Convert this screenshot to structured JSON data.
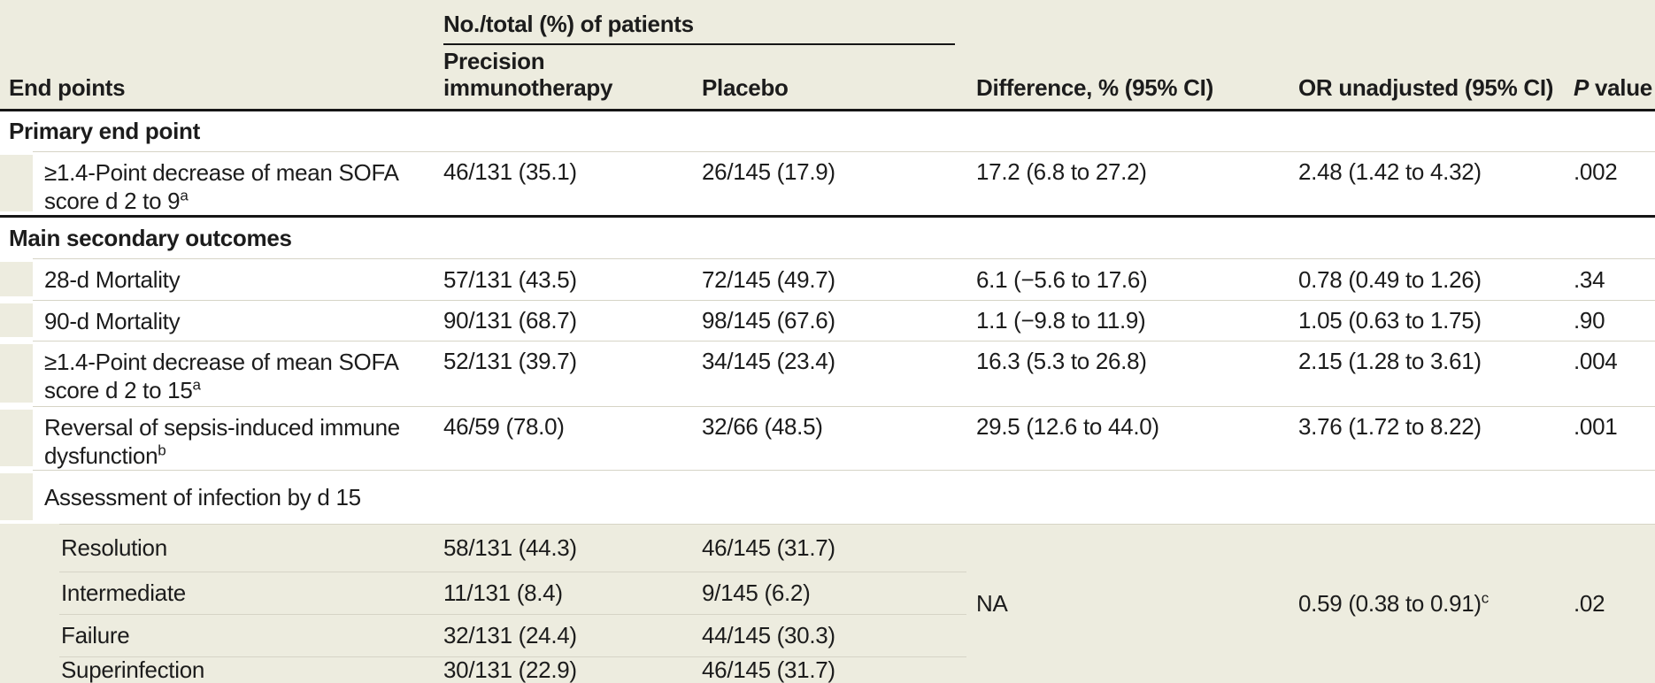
{
  "colors": {
    "band_beige": "#edecdf",
    "thin_line": "#d6d4c6",
    "thick_rule": "#161616",
    "text": "#1c1c1c"
  },
  "header": {
    "spanner": "No./total (%) of patients",
    "endpoints": "End points",
    "precision": "Precision\nimmunotherapy",
    "placebo": "Placebo",
    "difference": "Difference, % (95% CI)",
    "or": "OR unadjusted (95% CI)",
    "p_italic": "P",
    "p_rest": "value"
  },
  "sections": [
    {
      "title": "Primary end point",
      "rows": [
        {
          "label": "≥1.4-Point decrease of mean SOFA\nscore d 2 to 9",
          "label_sup": "a",
          "precision": "46/131 (35.1)",
          "placebo": "26/145 (17.9)",
          "difference": "17.2 (6.8 to 27.2)",
          "or": "2.48 (1.42 to 4.32)",
          "p": ".002"
        }
      ]
    },
    {
      "title": "Main secondary outcomes",
      "rows": [
        {
          "label": "28-d Mortality",
          "precision": "57/131 (43.5)",
          "placebo": "72/145 (49.7)",
          "difference": "6.1 (−5.6 to 17.6)",
          "or": "0.78 (0.49 to 1.26)",
          "p": ".34"
        },
        {
          "label": "90-d Mortality",
          "precision": "90/131 (68.7)",
          "placebo": "98/145 (67.6)",
          "difference": "1.1 (−9.8 to 11.9)",
          "or": "1.05 (0.63 to 1.75)",
          "p": ".90"
        },
        {
          "label": "≥1.4-Point decrease of mean SOFA\nscore d 2 to 15",
          "label_sup": "a",
          "precision": "52/131 (39.7)",
          "placebo": "34/145 (23.4)",
          "difference": "16.3 (5.3 to 26.8)",
          "or": "2.15 (1.28 to 3.61)",
          "p": ".004"
        },
        {
          "label": "Reversal of sepsis-induced immune\ndysfunction",
          "label_sup": "b",
          "precision": "46/59 (78.0)",
          "placebo": "32/66 (48.5)",
          "difference": "29.5 (12.6 to 44.0)",
          "or": "3.76 (1.72 to 8.22)",
          "p": ".001"
        },
        {
          "label": "Assessment of infection by d 15"
        }
      ]
    }
  ],
  "infection": {
    "rows": [
      {
        "label": "Resolution",
        "precision": "58/131 (44.3)",
        "placebo": "46/145 (31.7)"
      },
      {
        "label": "Intermediate",
        "precision": "11/131 (8.4)",
        "placebo": "9/145 (6.2)"
      },
      {
        "label": "Failure",
        "precision": "32/131 (24.4)",
        "placebo": "44/145 (30.3)"
      },
      {
        "label": "Superinfection",
        "precision": "30/131 (22.9)",
        "placebo": "46/145 (31.7)"
      }
    ],
    "merged": {
      "difference": "NA",
      "or": "0.59 (0.38 to 0.91)",
      "or_sup": "c",
      "p": ".02"
    }
  }
}
